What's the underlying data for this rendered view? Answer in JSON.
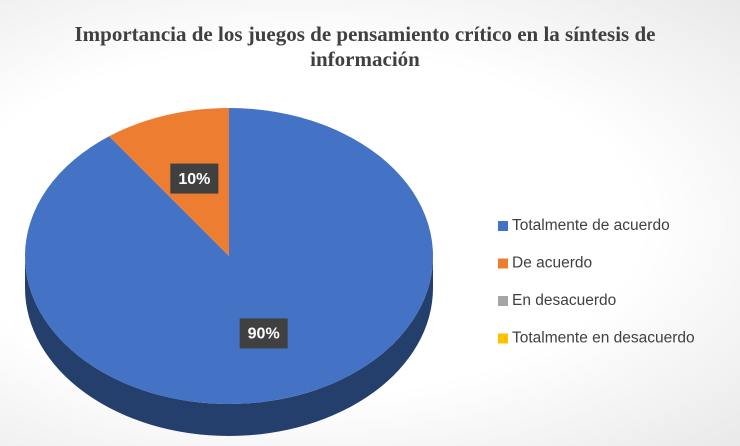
{
  "chart_data": {
    "type": "pie",
    "title": "Importancia de los juegos de pensamiento crítico en la síntesis de información",
    "categories": [
      "Totalmente de acuerdo",
      "De acuerdo",
      "En desacuerdo",
      "Totalmente en desacuerdo"
    ],
    "values": [
      90,
      10,
      0,
      0
    ],
    "value_labels": [
      "90%",
      "10%",
      null,
      null
    ],
    "colors": [
      "#4472c4",
      "#ed7d31",
      "#a5a5a5",
      "#ffc000"
    ],
    "legend": "right"
  }
}
